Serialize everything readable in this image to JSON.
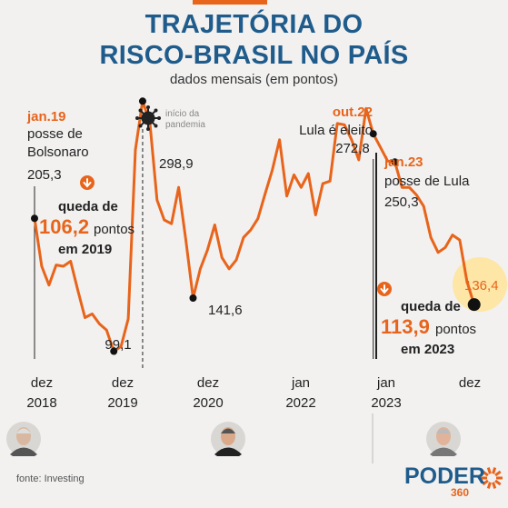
{
  "header": {
    "title_line1": "TRAJETÓRIA DO",
    "title_line2": "RISCO-BRASIL NO PAÍS",
    "subtitle": "dados mensais (em pontos)"
  },
  "footer": {
    "source": "fonte: Investing",
    "brand": "PODER",
    "brand_sub": "360"
  },
  "colors": {
    "line": "#e8641b",
    "title": "#1f5c8c",
    "highlight": "#fde6a6",
    "text": "#222222"
  },
  "icons": [
    "virus-icon",
    "down-arrow-icon",
    "avatar-temer",
    "avatar-bolsonaro",
    "avatar-lula",
    "poder360-logo-icon"
  ],
  "chart_data": {
    "type": "line",
    "series": [
      {
        "values": [
          205.3,
          167,
          152,
          168,
          167,
          171,
          148,
          126,
          129,
          121,
          116,
          99.1,
          103,
          125,
          260,
          298.9,
          282,
          220,
          204,
          201,
          230,
          188,
          141.6,
          165,
          180,
          200,
          174,
          165,
          172,
          190,
          196,
          205,
          225,
          244,
          268,
          223,
          240,
          230,
          241,
          208,
          233,
          235,
          281,
          280,
          268,
          252,
          293,
          272.8,
          262,
          251,
          250.3,
          230,
          230,
          224,
          215,
          190,
          178,
          182,
          192,
          188,
          155,
          136.4
        ]
      }
    ],
    "x_ticks": [
      {
        "month": 0,
        "line1": "dez",
        "line2": "2018"
      },
      {
        "month": 12,
        "line1": "dez",
        "line2": "2019"
      },
      {
        "month": 24,
        "line1": "dez",
        "line2": "2020"
      },
      {
        "month": 37,
        "line1": "jan",
        "line2": "2022"
      },
      {
        "month": 49,
        "line1": "jan",
        "line2": "2023"
      },
      {
        "month": 61,
        "line1": "dez",
        "line2": ""
      }
    ],
    "value_labels": [
      {
        "month": 0,
        "text": "205,3",
        "dot": true
      },
      {
        "month": 11,
        "text": "99,1",
        "dot": true
      },
      {
        "month": 15,
        "text": "298,9",
        "dot": true
      },
      {
        "month": 22,
        "text": "141,6",
        "dot": true
      },
      {
        "month": 47,
        "text": "272,8",
        "dot": true
      },
      {
        "month": 50,
        "text": "250,3",
        "dot": true
      },
      {
        "month": 61,
        "text": "136,4",
        "dot": true,
        "highlight": true
      }
    ],
    "events": [
      {
        "month": 0,
        "date": "jan.19",
        "lines": [
          "posse de",
          "Bolsonaro"
        ]
      },
      {
        "month": 15,
        "date": "",
        "lines": [
          "início da",
          "pandemia"
        ]
      },
      {
        "month": 47,
        "date": "out.22",
        "lines": [
          "Lula é eleito"
        ]
      },
      {
        "month": 50,
        "date": "jan.23",
        "lines": [
          "posse de Lula"
        ]
      }
    ],
    "annotations": [
      {
        "line1": "queda de",
        "value": "106,2",
        "unit": "pontos",
        "line3": "em 2019"
      },
      {
        "line1": "queda de",
        "value": "113,9",
        "unit": "pontos",
        "line3": "em 2023"
      }
    ]
  }
}
